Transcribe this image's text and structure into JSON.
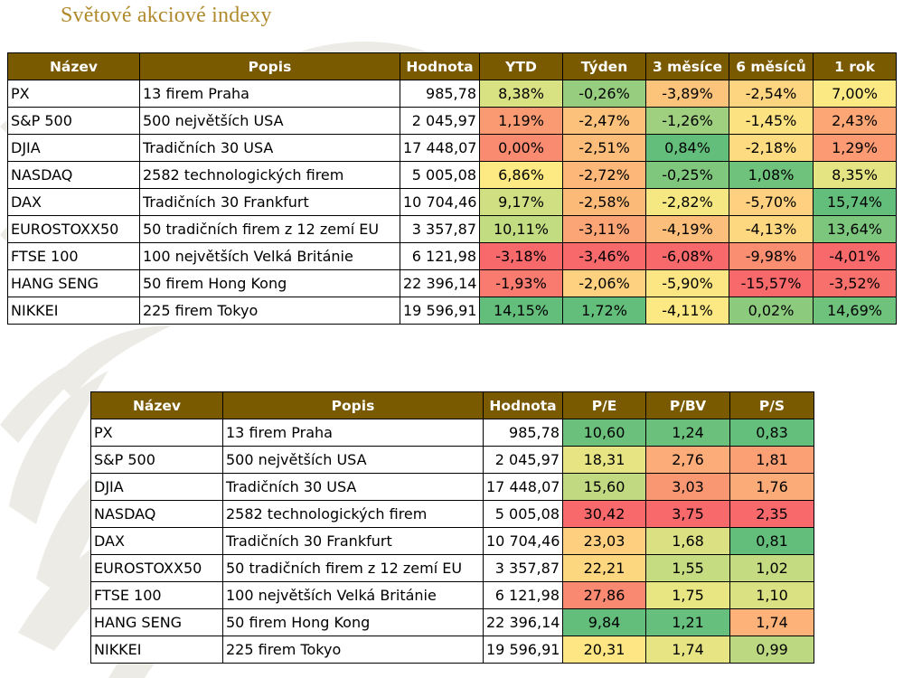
{
  "title": "Světové akciové indexy",
  "colors": {
    "header_bg": "#7a5a00",
    "title": "#b08a2c",
    "good": "#63be7b",
    "neutral": "#ffeb84",
    "bad": "#f8696b"
  },
  "performance_table": {
    "headers": [
      "Název",
      "Popis",
      "Hodnota",
      "YTD",
      "Týden",
      "3 měsíce",
      "6 měsíců",
      "1 rok"
    ],
    "rows": [
      {
        "name": "PX",
        "desc": "13 firem Praha",
        "value": "985,78",
        "cells": [
          "8,38%",
          "-0,26%",
          "-3,89%",
          "-2,54%",
          "7,00%"
        ],
        "colors": [
          "#d9e283",
          "#97cd7e",
          "#fcc47b",
          "#fdd47f",
          "#fbe983"
        ]
      },
      {
        "name": "S&P 500",
        "desc": "500 největších USA",
        "value": "2 045,97",
        "cells": [
          "1,19%",
          "-2,47%",
          "-1,26%",
          "-1,45%",
          "2,43%"
        ],
        "colors": [
          "#fa9a73",
          "#fcc17b",
          "#9fd07f",
          "#fde282",
          "#fca676"
        ]
      },
      {
        "name": "DJIA",
        "desc": "Tradičních 30 USA",
        "value": "17 448,07",
        "cells": [
          "0,00%",
          "-2,51%",
          "0,84%",
          "-2,18%",
          "1,29%"
        ],
        "colors": [
          "#f98b70",
          "#fcbd7a",
          "#63be7b",
          "#fddb81",
          "#fb9a73"
        ]
      },
      {
        "name": "NASDAQ",
        "desc": "2582 technologických firem",
        "value": "5 005,08",
        "cells": [
          "6,86%",
          "-2,72%",
          "-0,25%",
          "1,08%",
          "8,35%"
        ],
        "colors": [
          "#fdea83",
          "#fdb778",
          "#7fc77d",
          "#6ec27c",
          "#e5e483"
        ]
      },
      {
        "name": "DAX",
        "desc": "Tradičních 30 Frankfurt",
        "value": "10 704,46",
        "cells": [
          "9,17%",
          "-2,58%",
          "-2,82%",
          "-5,70%",
          "15,74%"
        ],
        "colors": [
          "#cfdf82",
          "#fcba79",
          "#f5e883",
          "#fed07f",
          "#63be7b"
        ]
      },
      {
        "name": "EUROSTOXX50",
        "desc": "50 tradičních firem z 12 zemí EU",
        "value": "3 357,87",
        "cells": [
          "10,11%",
          "-3,11%",
          "-4,19%",
          "-4,13%",
          "13,64%"
        ],
        "colors": [
          "#c2dc81",
          "#fba576",
          "#fcbe7b",
          "#fed880",
          "#7cc67d"
        ]
      },
      {
        "name": "FTSE 100",
        "desc": "100 největších Velká Británie",
        "value": "6 121,98",
        "cells": [
          "-3,18%",
          "-3,46%",
          "-6,08%",
          "-9,98%",
          "-4,01%"
        ],
        "colors": [
          "#f8696b",
          "#f8696b",
          "#f8696b",
          "#f98e71",
          "#f8696b"
        ]
      },
      {
        "name": "HANG SENG",
        "desc": "50 firem Hong Kong",
        "value": "22 396,14",
        "cells": [
          "-1,93%",
          "-2,06%",
          "-5,90%",
          "-15,57%",
          "-3,52%"
        ],
        "colors": [
          "#f97a6e",
          "#fdd17f",
          "#fce683",
          "#f8696b",
          "#f8706c"
        ]
      },
      {
        "name": "NIKKEI",
        "desc": "225 firem Tokyo",
        "value": "19 596,91",
        "cells": [
          "14,15%",
          "1,72%",
          "-4,11%",
          "0,02%",
          "14,69%"
        ],
        "colors": [
          "#63be7b",
          "#63be7b",
          "#fde983",
          "#8ccb7e",
          "#6ec27c"
        ]
      }
    ]
  },
  "valuation_table": {
    "headers": [
      "Název",
      "Popis",
      "Hodnota",
      "P/E",
      "P/BV",
      "P/S"
    ],
    "rows": [
      {
        "name": "PX",
        "desc": "13 firem Praha",
        "value": "985,78",
        "cells": [
          "10,60",
          "1,24",
          "0,83"
        ],
        "colors": [
          "#6bc07c",
          "#6bc07c",
          "#65bf7c"
        ]
      },
      {
        "name": "S&P 500",
        "desc": "500 největších USA",
        "value": "2 045,97",
        "cells": [
          "18,31",
          "2,76",
          "1,81"
        ],
        "colors": [
          "#e6e483",
          "#fbac78",
          "#fba075"
        ]
      },
      {
        "name": "DJIA",
        "desc": "Tradičních 30 USA",
        "value": "17 448,07",
        "cells": [
          "15,60",
          "3,03",
          "1,76"
        ],
        "colors": [
          "#c1da81",
          "#fa9773",
          "#fbab77"
        ]
      },
      {
        "name": "NASDAQ",
        "desc": "2582 technologických firem",
        "value": "5 005,08",
        "cells": [
          "30,42",
          "3,75",
          "2,35"
        ],
        "colors": [
          "#f8696b",
          "#f8696b",
          "#f8696b"
        ]
      },
      {
        "name": "DAX",
        "desc": "Tradičních 30 Frankfurt",
        "value": "10 704,46",
        "cells": [
          "23,03",
          "1,68",
          "0,81"
        ],
        "colors": [
          "#fdcf7f",
          "#dbe182",
          "#63be7b"
        ]
      },
      {
        "name": "EUROSTOXX50",
        "desc": "50 tradičních firem z 12 zemí EU",
        "value": "3 357,87",
        "cells": [
          "22,21",
          "1,55",
          "1,02"
        ],
        "colors": [
          "#fdd680",
          "#c6dc81",
          "#c4db81"
        ]
      },
      {
        "name": "FTSE 100",
        "desc": "100 největších Velká Británie",
        "value": "6 121,98",
        "cells": [
          "27,86",
          "1,75",
          "1,10"
        ],
        "colors": [
          "#f98970",
          "#e8e583",
          "#dae182"
        ]
      },
      {
        "name": "HANG SENG",
        "desc": "50 firem Hong Kong",
        "value": "22 396,14",
        "cells": [
          "9,84",
          "1,21",
          "1,74"
        ],
        "colors": [
          "#63be7b",
          "#66bf7c",
          "#fcb279"
        ]
      },
      {
        "name": "NIKKEI",
        "desc": "225 firem Tokyo",
        "value": "19 596,91",
        "cells": [
          "20,31",
          "1,74",
          "0,99"
        ],
        "colors": [
          "#fde683",
          "#e6e483",
          "#bcd981"
        ]
      }
    ]
  }
}
